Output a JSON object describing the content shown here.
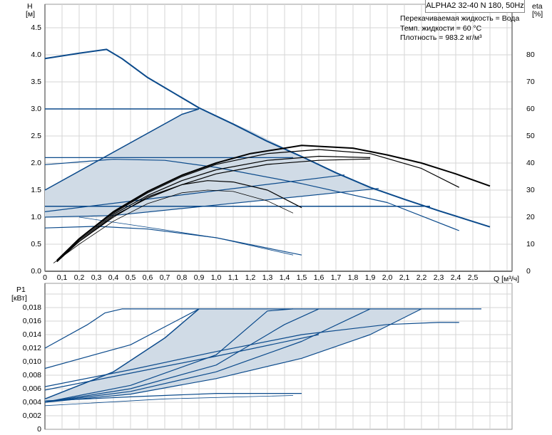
{
  "chart_data": [
    {
      "type": "line",
      "title": "ALPHA2 32-40 N 180, 50Hz",
      "info": [
        "Перекачиваемая жидкость = Вода",
        "Темп. жидкости = 60 °C",
        "Плотность = 983.2 кг/м³"
      ],
      "ylabel": "H",
      "yunit": "[м]",
      "y2label": "eta",
      "y2unit": "[%]",
      "xlabel": "Q [м³/ч]",
      "xlim": [
        0,
        2.73
      ],
      "ylim": [
        0,
        4.93
      ],
      "y2lim": [
        0,
        97.4
      ],
      "xticks": [
        "0",
        "0,1",
        "0,2",
        "0,3",
        "0,4",
        "0,5",
        "0,6",
        "0,7",
        "0,8",
        "0,9",
        "1,0",
        "1,1",
        "1,2",
        "1,3",
        "1,4",
        "1,5",
        "1,6",
        "1,7",
        "1,8",
        "1,9",
        "2,0",
        "2,1",
        "2,2",
        "2,3",
        "2,4",
        "2,5"
      ],
      "yticks": [
        "0.0",
        "0.5",
        "1.0",
        "1.5",
        "2.0",
        "2.5",
        "3.0",
        "3.5",
        "4.0",
        "4.5"
      ],
      "y2ticks": [
        "0",
        "10",
        "20",
        "30",
        "40",
        "50",
        "60",
        "70",
        "80"
      ],
      "grid": true,
      "shaded_region": [
        [
          0,
          1.5
        ],
        [
          0.8,
          2.9
        ],
        [
          0.9,
          3.0
        ],
        [
          1.2,
          2.6
        ],
        [
          1.5,
          2.12
        ],
        [
          1.7,
          1.82
        ],
        [
          1.9,
          1.55
        ],
        [
          1.95,
          1.53
        ],
        [
          0.4,
          1.03
        ],
        [
          0.2,
          1.0
        ],
        [
          0,
          1.0
        ]
      ],
      "head_series": [
        {
          "name": "max-curve",
          "width": 2,
          "points": [
            [
              0,
              3.93
            ],
            [
              0.2,
              4.03
            ],
            [
              0.36,
              4.1
            ],
            [
              0.45,
              3.93
            ],
            [
              0.6,
              3.58
            ],
            [
              0.75,
              3.3
            ],
            [
              0.9,
              3.02
            ],
            [
              1.1,
              2.72
            ],
            [
              1.3,
              2.4
            ],
            [
              1.5,
              2.12
            ],
            [
              1.7,
              1.82
            ],
            [
              1.9,
              1.55
            ],
            [
              2.1,
              1.33
            ],
            [
              2.3,
              1.12
            ],
            [
              2.45,
              0.97
            ],
            [
              2.6,
              0.82
            ]
          ]
        },
        {
          "name": "constant-pressure-3.0",
          "width": 1.5,
          "points": [
            [
              0,
              3.0
            ],
            [
              0.9,
              3.0
            ]
          ]
        },
        {
          "name": "proportional-max",
          "width": 1.5,
          "points": [
            [
              0,
              1.5
            ],
            [
              0.8,
              2.9
            ],
            [
              0.9,
              3.0
            ]
          ]
        },
        {
          "name": "constant-pressure-2.1",
          "width": 1.2,
          "points": [
            [
              0,
              2.1
            ],
            [
              1.45,
              2.1
            ]
          ]
        },
        {
          "name": "speed-curve-2",
          "width": 1.2,
          "points": [
            [
              0,
              1.97
            ],
            [
              0.4,
              2.07
            ],
            [
              0.7,
              2.05
            ],
            [
              1.0,
              1.92
            ],
            [
              1.5,
              1.62
            ],
            [
              2.0,
              1.27
            ],
            [
              2.42,
              0.75
            ]
          ]
        },
        {
          "name": "constant-pressure-1.2",
          "width": 1.5,
          "points": [
            [
              0,
              1.2
            ],
            [
              2.25,
              1.2
            ]
          ]
        },
        {
          "name": "proportional-mid",
          "width": 1.2,
          "points": [
            [
              0,
              1.1
            ],
            [
              1.75,
              1.78
            ]
          ]
        },
        {
          "name": "proportional-low",
          "width": 1.2,
          "points": [
            [
              0,
              1.0
            ],
            [
              0.4,
              1.03
            ],
            [
              1.95,
              1.53
            ]
          ]
        },
        {
          "name": "speed-curve-low",
          "width": 1.2,
          "points": [
            [
              0,
              0.8
            ],
            [
              0.3,
              0.83
            ],
            [
              0.6,
              0.78
            ],
            [
              1.0,
              0.62
            ],
            [
              1.5,
              0.3
            ]
          ]
        },
        {
          "name": "speed-curve-lowest",
          "width": 0.8,
          "points": [
            [
              0.2,
              1.0
            ],
            [
              0.5,
              0.86
            ],
            [
              1.0,
              0.62
            ],
            [
              1.45,
              0.3
            ]
          ]
        }
      ],
      "eta_series": [
        {
          "name": "eta-max",
          "width": 2,
          "points": [
            [
              0.07,
              4
            ],
            [
              0.2,
              12
            ],
            [
              0.4,
              22
            ],
            [
              0.6,
              29.5
            ],
            [
              0.8,
              35.5
            ],
            [
              1.0,
              40
            ],
            [
              1.2,
              43.5
            ],
            [
              1.5,
              46.5
            ],
            [
              1.8,
              45.5
            ],
            [
              2.0,
              43
            ],
            [
              2.2,
              40
            ],
            [
              2.4,
              36
            ],
            [
              2.6,
              31.5
            ]
          ]
        },
        {
          "name": "eta-2",
          "width": 1.2,
          "points": [
            [
              0.07,
              4
            ],
            [
              0.2,
              12
            ],
            [
              0.4,
              21.5
            ],
            [
              0.6,
              29
            ],
            [
              0.8,
              35
            ],
            [
              1.0,
              39.5
            ],
            [
              1.3,
              43.5
            ],
            [
              1.6,
              45
            ],
            [
              1.9,
              43.5
            ],
            [
              2.2,
              38
            ],
            [
              2.42,
              31
            ]
          ]
        },
        {
          "name": "eta-3",
          "width": 1.2,
          "points": [
            [
              0.07,
              3.5
            ],
            [
              0.2,
              11.5
            ],
            [
              0.4,
              21
            ],
            [
              0.6,
              28
            ],
            [
              0.8,
              33.5
            ],
            [
              1.0,
              37.5
            ],
            [
              1.3,
              41
            ],
            [
              1.6,
              42.5
            ],
            [
              1.9,
              42
            ]
          ]
        },
        {
          "name": "eta-4",
          "width": 1.2,
          "points": [
            [
              0.07,
              3.5
            ],
            [
              0.2,
              11
            ],
            [
              0.4,
              20.5
            ],
            [
              0.6,
              27
            ],
            [
              0.8,
              32
            ],
            [
              1.0,
              36
            ],
            [
              1.3,
              39.5
            ],
            [
              1.6,
              41
            ],
            [
              1.9,
              41.5
            ]
          ]
        },
        {
          "name": "eta-5",
          "width": 1.2,
          "points": [
            [
              0.07,
              3.5
            ],
            [
              0.2,
              11
            ],
            [
              0.4,
              20
            ],
            [
              0.6,
              27.5
            ],
            [
              0.8,
              32
            ],
            [
              0.95,
              33.5
            ],
            [
              1.1,
              33
            ],
            [
              1.3,
              30
            ],
            [
              1.5,
              23.5
            ]
          ]
        },
        {
          "name": "eta-6",
          "width": 0.8,
          "points": [
            [
              0.05,
              3
            ],
            [
              0.2,
              10
            ],
            [
              0.4,
              18.5
            ],
            [
              0.6,
              25
            ],
            [
              0.8,
              29
            ],
            [
              0.95,
              30
            ],
            [
              1.1,
              29.5
            ],
            [
              1.3,
              26
            ],
            [
              1.45,
              21.5
            ]
          ]
        }
      ]
    },
    {
      "type": "line",
      "ylabel": "P1",
      "yunit": "[кВт]",
      "xlim": [
        0,
        2.73
      ],
      "ylim": [
        0,
        0.0216
      ],
      "yticks": [
        "0",
        "0,002",
        "0,004",
        "0,006",
        "0,008",
        "0,010",
        "0,012",
        "0,014",
        "0,016",
        "0,018"
      ],
      "grid": true,
      "shaded_region": [
        [
          0,
          0.0045
        ],
        [
          0.4,
          0.0085
        ],
        [
          0.7,
          0.0135
        ],
        [
          0.9,
          0.0178
        ],
        [
          2.2,
          0.0178
        ],
        [
          1.9,
          0.014
        ],
        [
          1.5,
          0.0105
        ],
        [
          1.0,
          0.0075
        ],
        [
          0.5,
          0.0052
        ],
        [
          0,
          0.004
        ]
      ],
      "power_series": [
        {
          "name": "p1-max",
          "width": 1.2,
          "points": [
            [
              0,
              0.012
            ],
            [
              0.25,
              0.0155
            ],
            [
              0.35,
              0.0172
            ],
            [
              0.45,
              0.0178
            ],
            [
              2.55,
              0.0178
            ]
          ]
        },
        {
          "name": "p1-2",
          "width": 1.2,
          "points": [
            [
              0,
              0.009
            ],
            [
              0.5,
              0.0125
            ],
            [
              0.9,
              0.0178
            ]
          ]
        },
        {
          "name": "p1-3",
          "width": 1.5,
          "points": [
            [
              0,
              0.0045
            ],
            [
              0.4,
              0.0085
            ],
            [
              0.7,
              0.0135
            ],
            [
              0.9,
              0.0178
            ]
          ]
        },
        {
          "name": "p1-4",
          "width": 1.2,
          "points": [
            [
              0,
              0.004
            ],
            [
              0.5,
              0.0065
            ],
            [
              1.0,
              0.011
            ],
            [
              1.3,
              0.0175
            ],
            [
              1.45,
              0.0178
            ]
          ]
        },
        {
          "name": "p1-5",
          "width": 1.2,
          "points": [
            [
              0,
              0.004
            ],
            [
              0.5,
              0.006
            ],
            [
              1.0,
              0.0095
            ],
            [
              1.4,
              0.0155
            ],
            [
              1.6,
              0.0178
            ]
          ]
        },
        {
          "name": "p1-6",
          "width": 1.2,
          "points": [
            [
              0,
              0.004
            ],
            [
              0.5,
              0.0056
            ],
            [
              1.0,
              0.0085
            ],
            [
              1.5,
              0.013
            ],
            [
              1.9,
              0.0178
            ]
          ]
        },
        {
          "name": "p1-7",
          "width": 1.2,
          "points": [
            [
              0,
              0.004
            ],
            [
              0.5,
              0.0052
            ],
            [
              1.0,
              0.0075
            ],
            [
              1.5,
              0.0105
            ],
            [
              1.9,
              0.014
            ],
            [
              2.2,
              0.0178
            ]
          ]
        },
        {
          "name": "p1-8",
          "width": 1.2,
          "points": [
            [
              0,
              0.0063
            ],
            [
              0.5,
              0.0088
            ],
            [
              1.0,
              0.0115
            ],
            [
              1.5,
              0.014
            ],
            [
              2.0,
              0.0155
            ],
            [
              2.3,
              0.0158
            ],
            [
              2.42,
              0.0158
            ]
          ]
        },
        {
          "name": "p1-9",
          "width": 1.2,
          "points": [
            [
              0,
              0.0058
            ],
            [
              0.5,
              0.0083
            ],
            [
              1.0,
              0.0108
            ],
            [
              1.6,
              0.014
            ]
          ]
        },
        {
          "name": "p1-low",
          "width": 1.2,
          "points": [
            [
              0,
              0.0042
            ],
            [
              0.5,
              0.0048
            ],
            [
              1.0,
              0.0053
            ],
            [
              1.5,
              0.0053
            ]
          ]
        },
        {
          "name": "p1-lowest",
          "width": 0.8,
          "points": [
            [
              0,
              0.0035
            ],
            [
              0.7,
              0.0045
            ],
            [
              1.45,
              0.005
            ]
          ]
        }
      ]
    }
  ],
  "colors": {
    "curve": "#0b4a8b",
    "eta": "#000000",
    "shade": "#d0dbe6",
    "grid": "#d6d6d6",
    "axis": "#777777"
  }
}
